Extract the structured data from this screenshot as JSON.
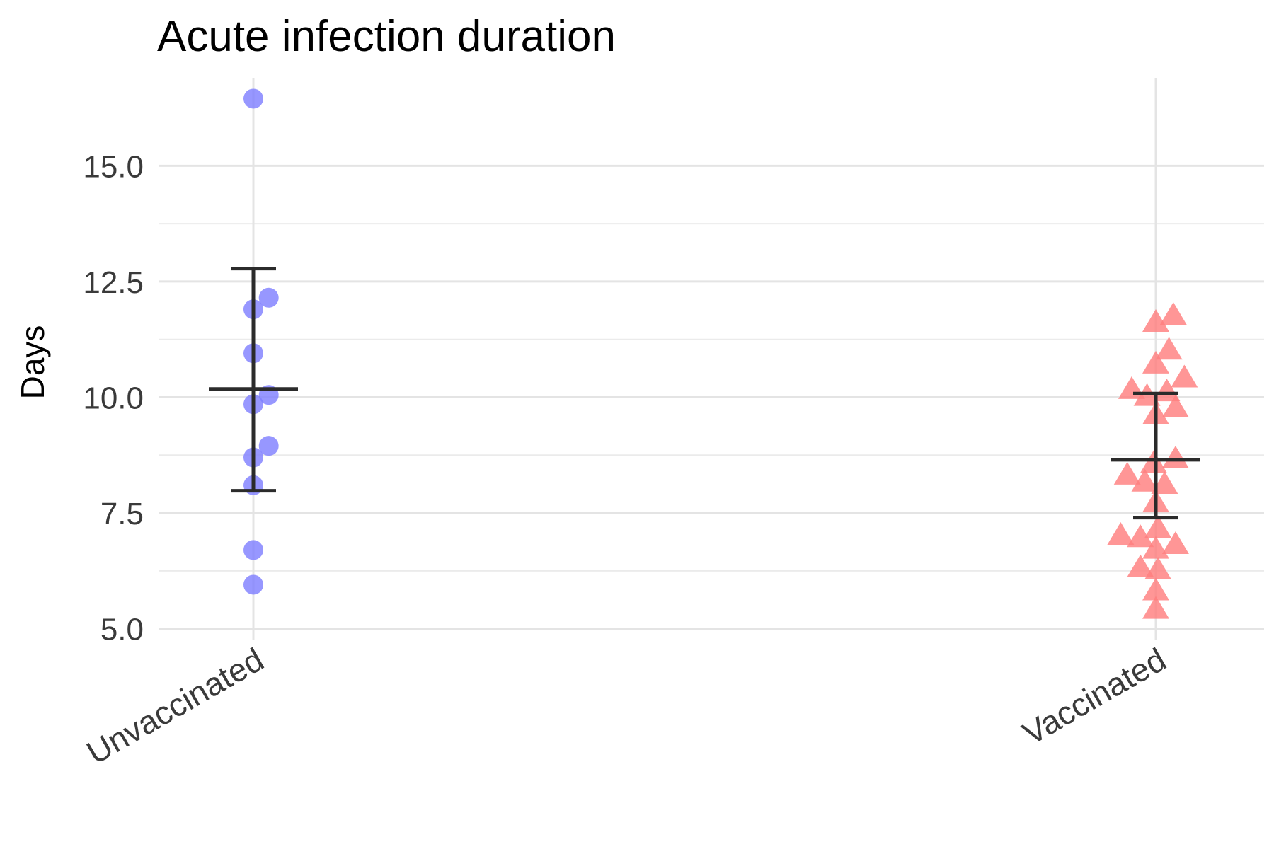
{
  "chart_data": {
    "type": "scatter",
    "title": "Acute infection duration",
    "xlabel": "",
    "ylabel": "Days",
    "categories": [
      "Unvaccinated",
      "Vaccinated"
    ],
    "ylim": [
      4.75,
      16.9
    ],
    "yticks": [
      5.0,
      7.5,
      10.0,
      12.5,
      15.0
    ],
    "ytick_labels": [
      "5.0",
      "7.5",
      "10.0",
      "12.5",
      "15.0"
    ],
    "grid": true,
    "series": [
      {
        "category": "Unvaccinated",
        "marker": "circle",
        "color": "#8080ff",
        "points": [
          {
            "x": 0.0,
            "y": 16.45
          },
          {
            "x": 0.035,
            "y": 12.15
          },
          {
            "x": 0.0,
            "y": 11.9
          },
          {
            "x": 0.0,
            "y": 10.95
          },
          {
            "x": 0.035,
            "y": 10.05
          },
          {
            "x": 0.0,
            "y": 9.85
          },
          {
            "x": 0.035,
            "y": 8.95
          },
          {
            "x": 0.0,
            "y": 8.7
          },
          {
            "x": 0.0,
            "y": 8.1
          },
          {
            "x": 0.0,
            "y": 6.7
          },
          {
            "x": 0.0,
            "y": 5.95
          }
        ],
        "mean": 10.18,
        "error_low": 7.98,
        "error_high": 12.78
      },
      {
        "category": "Vaccinated",
        "marker": "triangle",
        "color": "#ff7f7f",
        "points": [
          {
            "x": 0.04,
            "y": 11.75
          },
          {
            "x": 0.0,
            "y": 11.6
          },
          {
            "x": 0.03,
            "y": 11.0
          },
          {
            "x": 0.0,
            "y": 10.7
          },
          {
            "x": 0.065,
            "y": 10.4
          },
          {
            "x": -0.055,
            "y": 10.15
          },
          {
            "x": 0.025,
            "y": 10.1
          },
          {
            "x": -0.02,
            "y": 10.0
          },
          {
            "x": 0.045,
            "y": 9.75
          },
          {
            "x": 0.0,
            "y": 9.6
          },
          {
            "x": 0.045,
            "y": 8.65
          },
          {
            "x": -0.005,
            "y": 8.55
          },
          {
            "x": -0.065,
            "y": 8.3
          },
          {
            "x": -0.025,
            "y": 8.15
          },
          {
            "x": 0.02,
            "y": 8.1
          },
          {
            "x": 0.0,
            "y": 7.7
          },
          {
            "x": 0.005,
            "y": 7.15
          },
          {
            "x": -0.08,
            "y": 7.0
          },
          {
            "x": -0.035,
            "y": 6.95
          },
          {
            "x": 0.045,
            "y": 6.8
          },
          {
            "x": 0.0,
            "y": 6.7
          },
          {
            "x": -0.035,
            "y": 6.3
          },
          {
            "x": 0.005,
            "y": 6.25
          },
          {
            "x": 0.0,
            "y": 5.8
          },
          {
            "x": 0.0,
            "y": 5.4
          }
        ],
        "mean": 8.65,
        "error_low": 7.4,
        "error_high": 10.08
      }
    ]
  }
}
